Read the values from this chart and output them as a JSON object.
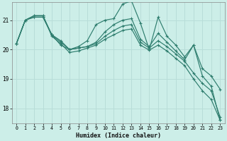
{
  "xlabel": "Humidex (Indice chaleur)",
  "bg_color": "#cceee8",
  "grid_color": "#b8ddd8",
  "line_color": "#2e7d6e",
  "xlim": [
    -0.5,
    23.5
  ],
  "ylim": [
    17.5,
    21.6
  ],
  "yticks": [
    18,
    19,
    20,
    21
  ],
  "xticks": [
    0,
    1,
    2,
    3,
    4,
    5,
    6,
    7,
    8,
    9,
    10,
    11,
    12,
    13,
    14,
    15,
    16,
    17,
    18,
    19,
    20,
    21,
    22,
    23
  ],
  "series": [
    [
      20.2,
      21.0,
      21.1,
      21.1,
      20.5,
      20.3,
      20.0,
      20.1,
      20.3,
      20.85,
      21.0,
      21.05,
      21.55,
      21.65,
      20.9,
      20.0,
      21.1,
      20.45,
      20.15,
      19.75,
      20.15,
      19.1,
      18.75,
      17.6
    ],
    [
      20.2,
      21.0,
      21.1,
      21.1,
      20.5,
      20.15,
      20.0,
      20.05,
      20.1,
      20.25,
      20.6,
      20.85,
      21.0,
      21.05,
      20.35,
      20.1,
      20.55,
      20.25,
      19.95,
      19.65,
      20.15,
      19.35,
      19.1,
      18.65
    ],
    [
      20.2,
      21.0,
      21.15,
      21.15,
      20.5,
      20.25,
      20.0,
      20.05,
      20.1,
      20.2,
      20.45,
      20.65,
      20.8,
      20.85,
      20.25,
      20.05,
      20.3,
      20.1,
      19.85,
      19.6,
      19.2,
      18.85,
      18.6,
      17.7
    ],
    [
      20.2,
      21.0,
      21.15,
      21.15,
      20.45,
      20.2,
      19.9,
      19.95,
      20.05,
      20.15,
      20.35,
      20.5,
      20.65,
      20.7,
      20.15,
      19.98,
      20.15,
      19.95,
      19.7,
      19.45,
      19.0,
      18.6,
      18.3,
      17.6
    ]
  ]
}
